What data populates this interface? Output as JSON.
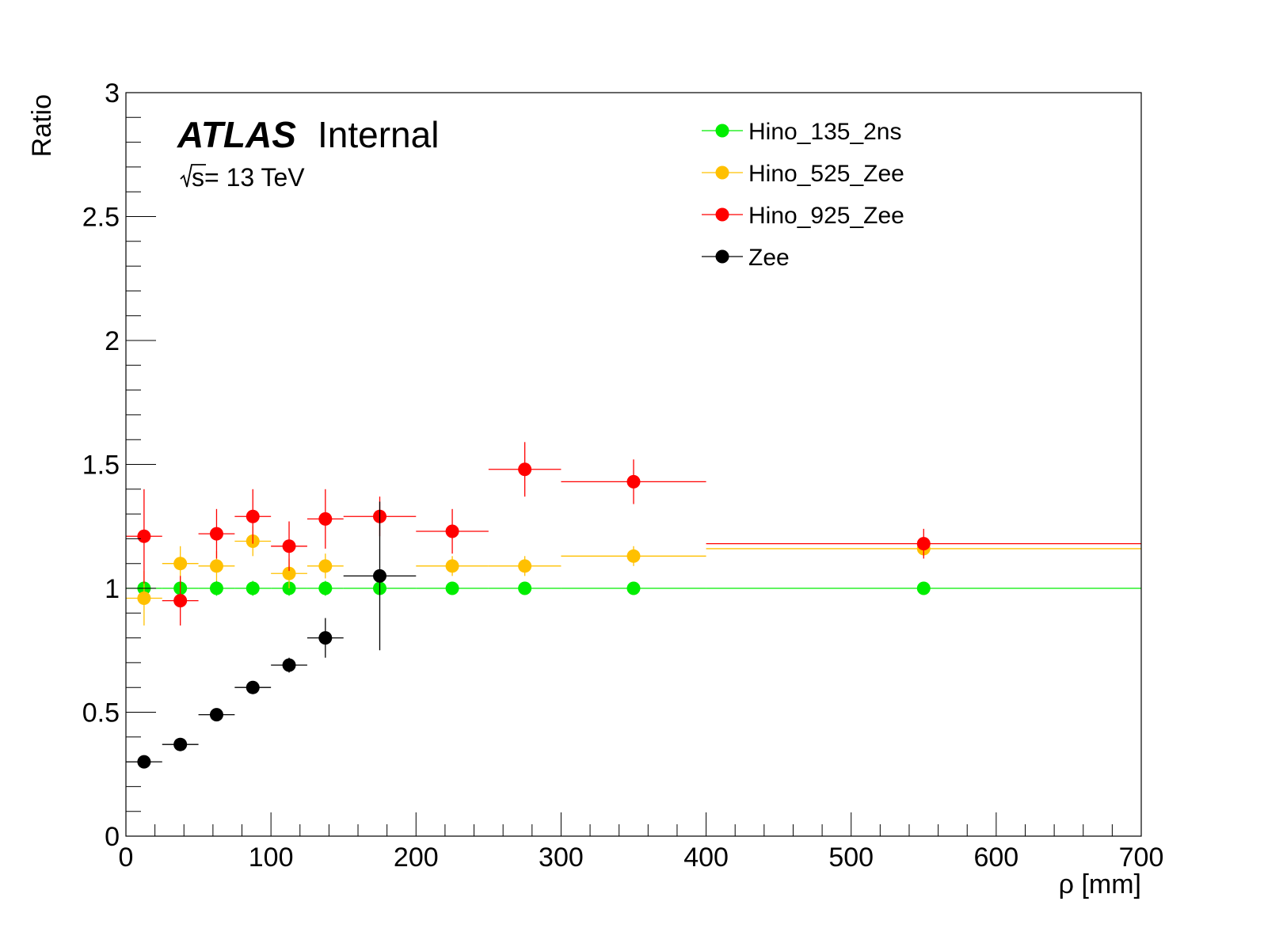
{
  "chart_data": {
    "type": "scatter",
    "title": "",
    "xlabel": "ρ [mm]",
    "ylabel": "Ratio",
    "xlim": [
      0,
      700
    ],
    "ylim": [
      0,
      3
    ],
    "x_ticks": [
      0,
      100,
      200,
      300,
      400,
      500,
      600,
      700
    ],
    "y_ticks": [
      0,
      0.5,
      1,
      1.5,
      2,
      2.5,
      3
    ],
    "x_tick_labels": [
      "0",
      "100",
      "200",
      "300",
      "400",
      "500",
      "600",
      "700"
    ],
    "y_tick_labels": [
      "0",
      "0.5",
      "1",
      "1.5",
      "2",
      "2.5",
      "3"
    ],
    "grid": false,
    "legend_position": "top-right",
    "annotations": {
      "experiment": "ATLAS",
      "status": "Internal",
      "sqrt_s": "s",
      "energy": " = 13 TeV"
    },
    "bins": [
      {
        "lo": 0,
        "hi": 25,
        "center": 12.5
      },
      {
        "lo": 25,
        "hi": 50,
        "center": 37.5
      },
      {
        "lo": 50,
        "hi": 75,
        "center": 62.5
      },
      {
        "lo": 75,
        "hi": 100,
        "center": 87.5
      },
      {
        "lo": 100,
        "hi": 125,
        "center": 112.5
      },
      {
        "lo": 125,
        "hi": 150,
        "center": 137.5
      },
      {
        "lo": 150,
        "hi": 200,
        "center": 175
      },
      {
        "lo": 200,
        "hi": 250,
        "center": 225
      },
      {
        "lo": 250,
        "hi": 300,
        "center": 275
      },
      {
        "lo": 300,
        "hi": 400,
        "center": 350
      },
      {
        "lo": 400,
        "hi": 700,
        "center": 550
      }
    ],
    "series": [
      {
        "name": "Hino_135_2ns",
        "color": "#00ee00",
        "values": [
          1,
          1,
          1,
          1,
          1,
          1,
          1,
          1,
          1,
          1,
          1
        ],
        "errors": [
          0.03,
          0.03,
          0.03,
          0.03,
          0.03,
          0.03,
          0.02,
          0.02,
          0.02,
          0.02,
          0.01
        ]
      },
      {
        "name": "Hino_525_Zee",
        "color": "#ffc000",
        "values": [
          0.96,
          1.1,
          1.09,
          1.19,
          1.06,
          1.09,
          null,
          1.09,
          1.09,
          1.13,
          1.16
        ],
        "errors": [
          0.11,
          0.07,
          0.06,
          0.06,
          0.06,
          0.05,
          null,
          0.04,
          0.04,
          0.04,
          0.03
        ]
      },
      {
        "name": "Hino_925_Zee",
        "color": "#ff0000",
        "values": [
          1.21,
          0.95,
          1.22,
          1.29,
          1.17,
          1.28,
          1.29,
          1.23,
          1.48,
          1.43,
          1.18
        ],
        "errors": [
          0.19,
          0.1,
          0.1,
          0.11,
          0.1,
          0.12,
          0.08,
          0.09,
          0.11,
          0.09,
          0.06
        ]
      },
      {
        "name": "Zee",
        "color": "#000000",
        "values": [
          0.3,
          0.37,
          0.49,
          0.6,
          0.69,
          0.8,
          1.05,
          null,
          null,
          null,
          null
        ],
        "errors": [
          0.01,
          0.015,
          0.02,
          0.025,
          0.03,
          0.08,
          0.3,
          null,
          null,
          null,
          null
        ]
      }
    ]
  }
}
